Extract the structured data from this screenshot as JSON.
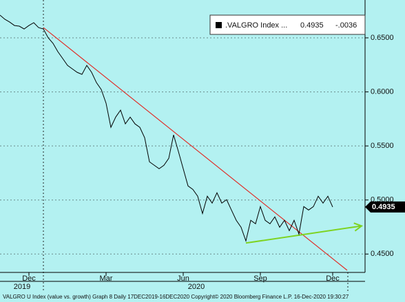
{
  "chart_data": {
    "type": "line",
    "categories": [
      null,
      null,
      null,
      null,
      null,
      null,
      "Dec",
      null,
      null,
      null,
      null,
      null,
      null,
      null,
      null,
      null,
      null,
      null,
      null,
      null,
      null,
      null,
      "Mar",
      null,
      null,
      null,
      null,
      null,
      null,
      null,
      null,
      null,
      null,
      null,
      null,
      null,
      null,
      null,
      "Jun",
      null,
      null,
      null,
      null,
      null,
      null,
      null,
      null,
      null,
      null,
      null,
      null,
      null,
      null,
      null,
      "Sep",
      null,
      null,
      null,
      null,
      null,
      null,
      null,
      null,
      null,
      null,
      null,
      null,
      null,
      null,
      "Dec"
    ],
    "year_labels": [
      "2019",
      "2020"
    ],
    "series": [
      {
        "name": ".VALGRO Index ...",
        "color": "#000000",
        "values": [
          0.671,
          0.6672,
          0.6646,
          0.6614,
          0.6608,
          0.6582,
          0.6614,
          0.664,
          0.6595,
          0.6582,
          0.65,
          0.6449,
          0.6372,
          0.6309,
          0.6245,
          0.6213,
          0.6181,
          0.6162,
          0.6245,
          0.6181,
          0.6086,
          0.6022,
          0.5895,
          0.5672,
          0.5767,
          0.5831,
          0.5704,
          0.5767,
          0.5704,
          0.5672,
          0.5576,
          0.5353,
          0.5321,
          0.5289,
          0.5321,
          0.5385,
          0.5602,
          0.5449,
          0.5289,
          0.513,
          0.5098,
          0.5035,
          0.4875,
          0.5035,
          0.4971,
          0.5067,
          0.4971,
          0.5003,
          0.4907,
          0.4812,
          0.4748,
          0.4621,
          0.4812,
          0.478,
          0.4939,
          0.4812,
          0.478,
          0.4844,
          0.4748,
          0.4812,
          0.4716,
          0.4812,
          0.4684,
          0.4939,
          0.4907,
          0.4939,
          0.5035,
          0.4971,
          0.5035,
          0.4935
        ],
        "last_value": {
          "value": 0.4935,
          "label": "0.4935"
        },
        "change": {
          "value": -0.0036,
          "label": "-.0036"
        }
      }
    ],
    "trend_lines": [
      {
        "color": "#e0302a",
        "x": [
          9,
          72
        ],
        "values": [
          0.6595,
          0.435
        ]
      },
      {
        "color": "#7ed321",
        "x": [
          51,
          75
        ],
        "values": [
          0.4602,
          0.476
        ],
        "arrow": true
      }
    ],
    "ylim": [
      0.433,
      0.685
    ],
    "yticks": [
      {
        "value": 0.45,
        "label": "0.4500"
      },
      {
        "value": 0.5,
        "label": "0.5000"
      },
      {
        "value": 0.55,
        "label": "0.5500"
      },
      {
        "value": 0.6,
        "label": "0.6000"
      },
      {
        "value": 0.65,
        "label": "0.6500"
      }
    ],
    "grid": true,
    "footer": "VALGRO U Index (value vs. growth) Graph 8  Daily 17DEC2019-16DEC2020     Copyright© 2020 Bloomberg Finance L.P.     16-Dec-2020 19:30:27"
  }
}
